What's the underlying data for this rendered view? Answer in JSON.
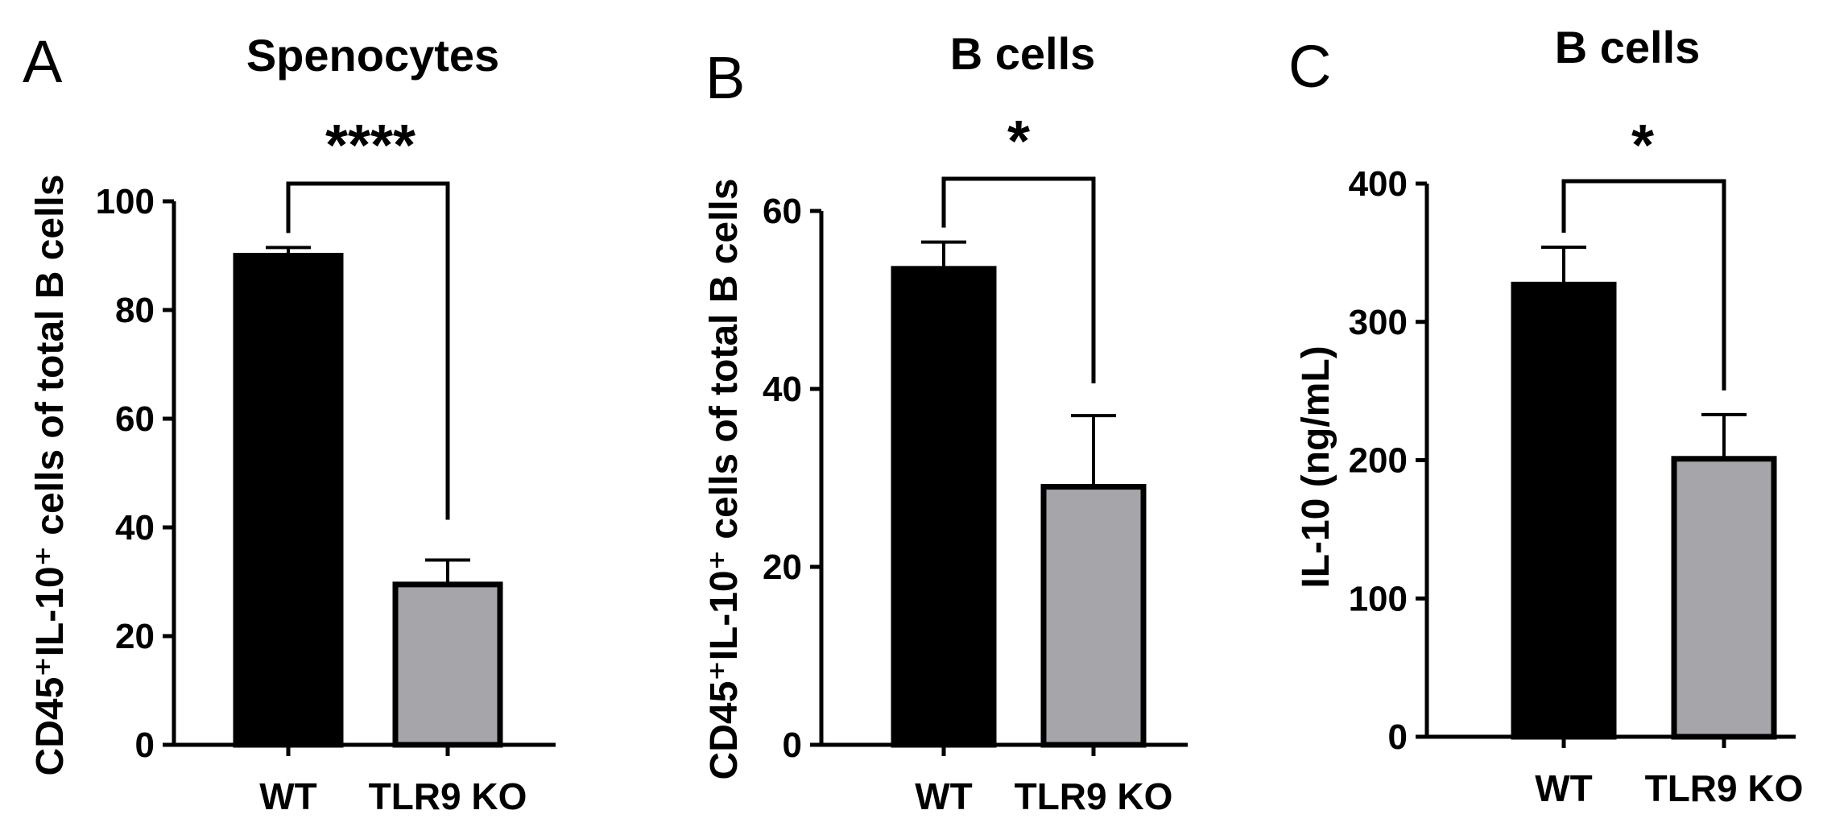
{
  "chart_data": [
    {
      "type": "bar",
      "panel": "A",
      "title": "Spenocytes",
      "ylabel": "CD45⁺IL-10⁺ cells of total B cells",
      "xlabel": "",
      "categories": [
        "WT",
        "TLR9 KO"
      ],
      "values": [
        90,
        29.5
      ],
      "errors": [
        1.5,
        4.5
      ],
      "colors": [
        "#000000",
        "#a5a5aa"
      ],
      "ylim": [
        0,
        100
      ],
      "yticks": [
        0,
        20,
        40,
        60,
        80,
        100
      ],
      "significance": "****"
    },
    {
      "type": "bar",
      "panel": "B",
      "title": "B cells",
      "ylabel": "CD45⁺IL-10⁺ cells of total B cells",
      "xlabel": "",
      "categories": [
        "WT",
        "TLR9 KO"
      ],
      "values": [
        53.5,
        29
      ],
      "errors": [
        3,
        8
      ],
      "colors": [
        "#000000",
        "#a5a5aa"
      ],
      "ylim": [
        0,
        60
      ],
      "yticks": [
        0,
        20,
        40,
        60
      ],
      "significance": "*"
    },
    {
      "type": "bar",
      "panel": "C",
      "title": "B cells",
      "ylabel": "IL-10 (ng/mL)",
      "xlabel": "",
      "categories": [
        "WT",
        "TLR9 KO"
      ],
      "values": [
        327,
        201
      ],
      "errors": [
        27,
        32
      ],
      "colors": [
        "#000000",
        "#a5a5aa"
      ],
      "ylim": [
        0,
        400
      ],
      "yticks": [
        0,
        100,
        200,
        300,
        400
      ],
      "significance": "*"
    }
  ]
}
